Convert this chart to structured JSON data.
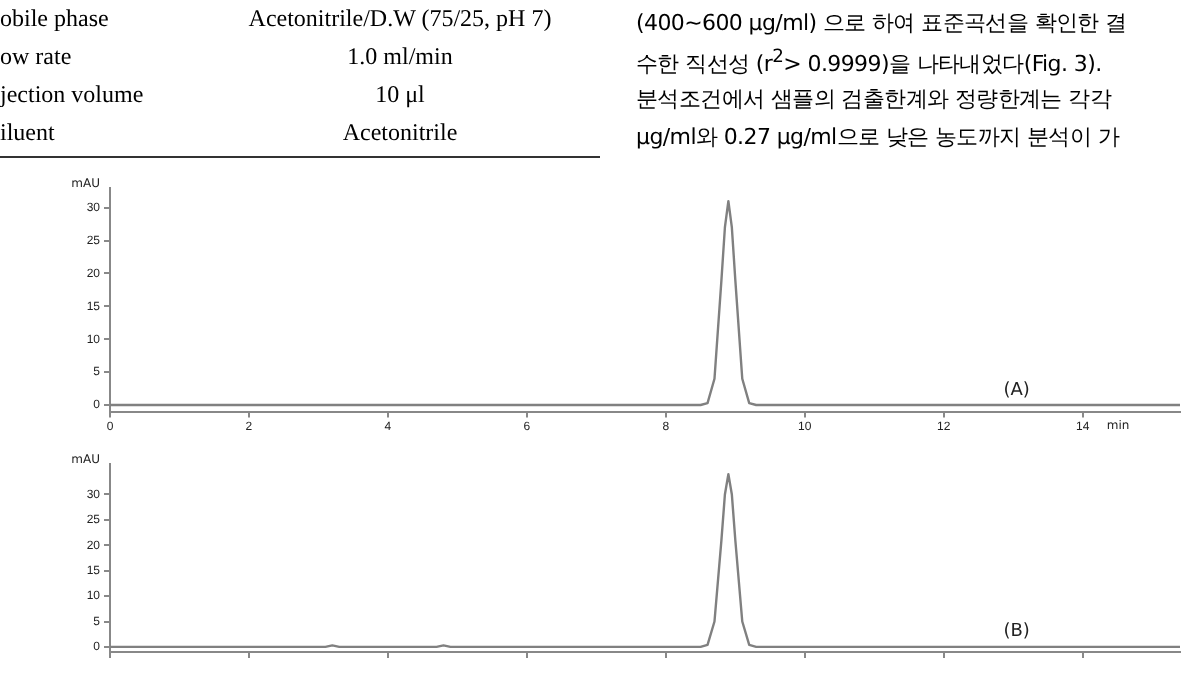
{
  "chart_data": [
    {
      "type": "other",
      "annotations": [
        "obile phase",
        "Acetonitrile/D.W (75/25, pH 7)",
        "ow rate",
        "1.0 ml/min",
        "jection volume",
        "10 μl",
        "iluent",
        "Acetonitrile",
        "(400~600 μg/ml) 으로 하여 표준곡선을 확인한 결",
        "수한 직선성 (r$^{2}$> 0.9999)을 나타내었다(Fig. 3).",
        "분석조건에서 샘플의 검출한계와 정량한계는 각각",
        "μg/ml와 0.27 μg/ml으로 낮은 농도까지 분석이 가"
      ]
    },
    {
      "type": "line",
      "xlabel": "min",
      "ylabel": "mAU",
      "annotations": [
        "(A)"
      ],
      "x": [
        0,
        8.5,
        8.6,
        8.7,
        8.8,
        8.85,
        8.9,
        8.95,
        9.0,
        9.1,
        9.2,
        9.3,
        15.4
      ],
      "series": [
        {
          "color": "#808080",
          "values": [
            0,
            0,
            0.3,
            4,
            19,
            27,
            31,
            27,
            19,
            4,
            0.3,
            0,
            0
          ]
        }
      ],
      "xlim": [
        0,
        15.4
      ],
      "xticks": [
        0,
        2,
        4,
        6,
        8,
        10,
        12,
        14
      ],
      "ylim": [
        -1,
        33
      ],
      "yticks": [
        0,
        5,
        10,
        15,
        20,
        25,
        30
      ]
    },
    {
      "type": "line",
      "ylabel": "mAU",
      "annotations": [
        "(B)"
      ],
      "tick_labels": "y",
      "x": [
        0,
        3.1,
        3.2,
        3.3,
        4.7,
        4.8,
        4.9,
        8.5,
        8.6,
        8.7,
        8.8,
        8.85,
        8.9,
        8.95,
        9.0,
        9.1,
        9.2,
        9.3,
        15.4
      ],
      "series": [
        {
          "color": "#808080",
          "values": [
            0,
            0,
            0.3,
            0,
            0,
            0.3,
            0,
            0,
            0.4,
            5,
            21,
            30,
            34,
            30,
            21,
            5,
            0.4,
            0,
            0
          ]
        }
      ],
      "xlim": [
        0,
        15.4
      ],
      "xticks": [
        0,
        2,
        4,
        6,
        8,
        10,
        12,
        14
      ],
      "ylim": [
        -1,
        36
      ],
      "yticks": [
        0,
        5,
        10,
        15,
        20,
        25,
        30
      ]
    }
  ]
}
